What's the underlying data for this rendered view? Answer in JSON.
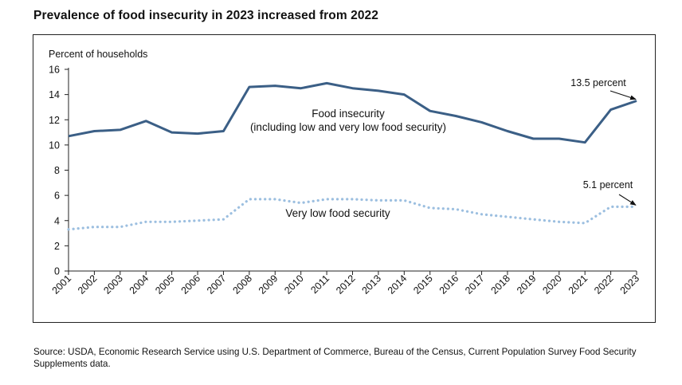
{
  "title": "Prevalence of food insecurity in 2023 increased from 2022",
  "source": "Source: USDA, Economic Research Service using U.S. Department of Commerce, Bureau of the Census, Current Population Survey Food Security Supplements data.",
  "colors": {
    "food_insecurity": "#3b5f86",
    "very_low": "#9cbfe0",
    "axis": "#222222"
  },
  "chart_data": {
    "type": "line",
    "ylabel": "Percent of households",
    "ylim": [
      0,
      16
    ],
    "yticks": [
      0,
      2,
      4,
      6,
      8,
      10,
      12,
      14,
      16
    ],
    "grid": false,
    "x": [
      "2001",
      "2002",
      "2003",
      "2004",
      "2005",
      "2006",
      "2007",
      "2008",
      "2009",
      "2010",
      "2011",
      "2012",
      "2013",
      "2014",
      "2015",
      "2016",
      "2017",
      "2018",
      "2019",
      "2020",
      "2021",
      "2022",
      "2023"
    ],
    "series": [
      {
        "name": "Food insecurity",
        "label_lines": [
          "Food insecurity",
          "(including low and very low food security)"
        ],
        "style": "solid",
        "values": [
          10.7,
          11.1,
          11.2,
          11.9,
          11.0,
          10.9,
          11.1,
          14.6,
          14.7,
          14.5,
          14.9,
          14.5,
          14.3,
          14.0,
          12.7,
          12.3,
          11.8,
          11.1,
          10.5,
          10.5,
          10.2,
          12.8,
          13.5
        ]
      },
      {
        "name": "Very low food security",
        "label_lines": [
          "Very low food security"
        ],
        "style": "dotted",
        "values": [
          3.3,
          3.5,
          3.5,
          3.9,
          3.9,
          4.0,
          4.1,
          5.7,
          5.7,
          5.4,
          5.7,
          5.7,
          5.6,
          5.6,
          5.0,
          4.9,
          4.5,
          4.3,
          4.1,
          3.9,
          3.8,
          5.1,
          5.1
        ]
      }
    ],
    "annotations": [
      {
        "text": "13.5 percent",
        "series": 0,
        "x": "2023"
      },
      {
        "text": "5.1 percent",
        "series": 1,
        "x": "2023"
      }
    ]
  }
}
